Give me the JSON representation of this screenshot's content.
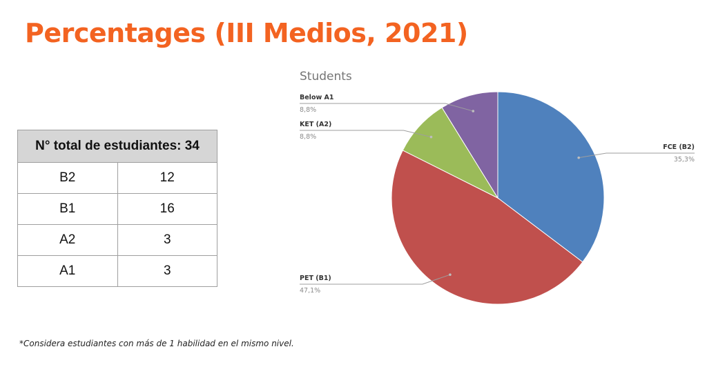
{
  "page": {
    "title": "Percentages (III Medios, 2021)",
    "footnote": "*Considera estudiantes con más de 1 habilidad en el mismo nivel."
  },
  "table": {
    "header": "N° total de estudiantes: 34",
    "rows": [
      {
        "level": "B2",
        "count": "12"
      },
      {
        "level": "B1",
        "count": "16"
      },
      {
        "level": "A2",
        "count": "3"
      },
      {
        "level": "A1",
        "count": "3"
      }
    ]
  },
  "colors": {
    "title": "#f36321",
    "fce": "#4f81bd",
    "pet": "#c0504d",
    "ket": "#9bbb59",
    "below": "#8064a2"
  },
  "chart_data": {
    "type": "pie",
    "title": "Students",
    "slices": [
      {
        "label": "FCE (B2)",
        "value": 35.3,
        "display": "35,3%",
        "color": "#4f81bd"
      },
      {
        "label": "PET (B1)",
        "value": 47.1,
        "display": "47,1%",
        "color": "#c0504d"
      },
      {
        "label": "KET (A2)",
        "value": 8.8,
        "display": "8,8%",
        "color": "#9bbb59"
      },
      {
        "label": "Below A1",
        "value": 8.8,
        "display": "8,8%",
        "color": "#8064a2"
      }
    ],
    "start": "12 o'clock",
    "direction": "clockwise",
    "legend": "none"
  }
}
